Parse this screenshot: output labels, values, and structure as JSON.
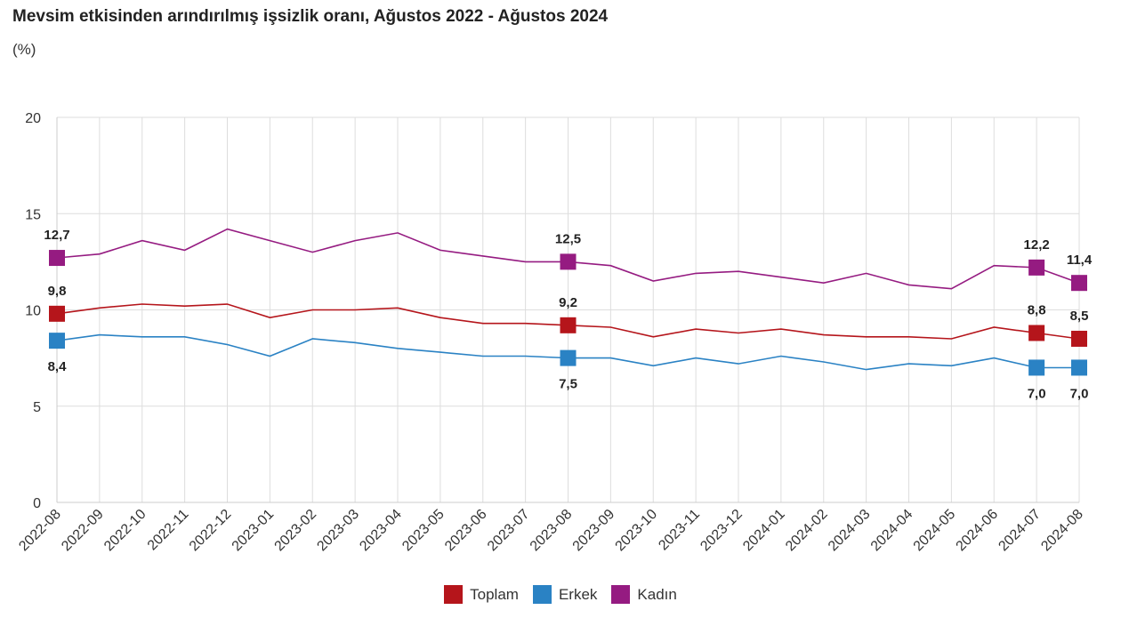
{
  "chart_data": {
    "type": "line",
    "title": "Mevsim etkisinden arındırılmış işsizlik oranı, Ağustos 2022 - Ağustos 2024",
    "subtitle": "(%)",
    "ylim": [
      0,
      20
    ],
    "yticks": [
      "0",
      "5",
      "10",
      "15",
      "20"
    ],
    "grid": true,
    "legend_position": "bottom-center",
    "x": [
      "2022-08",
      "2022-09",
      "2022-10",
      "2022-11",
      "2022-12",
      "2023-01",
      "2023-02",
      "2023-03",
      "2023-04",
      "2023-05",
      "2023-06",
      "2023-07",
      "2023-08",
      "2023-09",
      "2023-10",
      "2023-11",
      "2023-12",
      "2024-01",
      "2024-02",
      "2024-03",
      "2024-04",
      "2024-05",
      "2024-06",
      "2024-07",
      "2024-08"
    ],
    "series": [
      {
        "name": "Toplam",
        "color": "#b5151b",
        "values": [
          9.8,
          10.1,
          10.3,
          10.2,
          10.3,
          9.6,
          10.0,
          10.0,
          10.1,
          9.6,
          9.3,
          9.3,
          9.2,
          9.1,
          8.6,
          9.0,
          8.8,
          9.0,
          8.7,
          8.6,
          8.6,
          8.5,
          9.1,
          8.8,
          8.5
        ],
        "labels": [
          {
            "i": 0,
            "text": "9,8",
            "pos": "above"
          },
          {
            "i": 12,
            "text": "9,2",
            "pos": "above"
          },
          {
            "i": 23,
            "text": "8,8",
            "pos": "above"
          },
          {
            "i": 24,
            "text": "8,5",
            "pos": "above"
          }
        ]
      },
      {
        "name": "Erkek",
        "color": "#2a82c4",
        "values": [
          8.4,
          8.7,
          8.6,
          8.6,
          8.2,
          7.6,
          8.5,
          8.3,
          8.0,
          7.8,
          7.6,
          7.6,
          7.5,
          7.5,
          7.1,
          7.5,
          7.2,
          7.6,
          7.3,
          6.9,
          7.2,
          7.1,
          7.5,
          7.0,
          7.0
        ],
        "labels": [
          {
            "i": 0,
            "text": "8,4",
            "pos": "below"
          },
          {
            "i": 12,
            "text": "7,5",
            "pos": "below"
          },
          {
            "i": 23,
            "text": "7,0",
            "pos": "below"
          },
          {
            "i": 24,
            "text": "7,0",
            "pos": "below"
          }
        ]
      },
      {
        "name": "Kadın",
        "color": "#951b81",
        "values": [
          12.7,
          12.9,
          13.6,
          13.1,
          14.2,
          13.6,
          13.0,
          13.6,
          14.0,
          13.1,
          12.8,
          12.5,
          12.5,
          12.3,
          11.5,
          11.9,
          12.0,
          11.7,
          11.4,
          11.9,
          11.3,
          11.1,
          12.3,
          12.2,
          11.4
        ],
        "labels": [
          {
            "i": 0,
            "text": "12,7",
            "pos": "above"
          },
          {
            "i": 12,
            "text": "12,5",
            "pos": "above"
          },
          {
            "i": 23,
            "text": "12,2",
            "pos": "above"
          },
          {
            "i": 24,
            "text": "11,4",
            "pos": "above"
          }
        ]
      }
    ]
  }
}
